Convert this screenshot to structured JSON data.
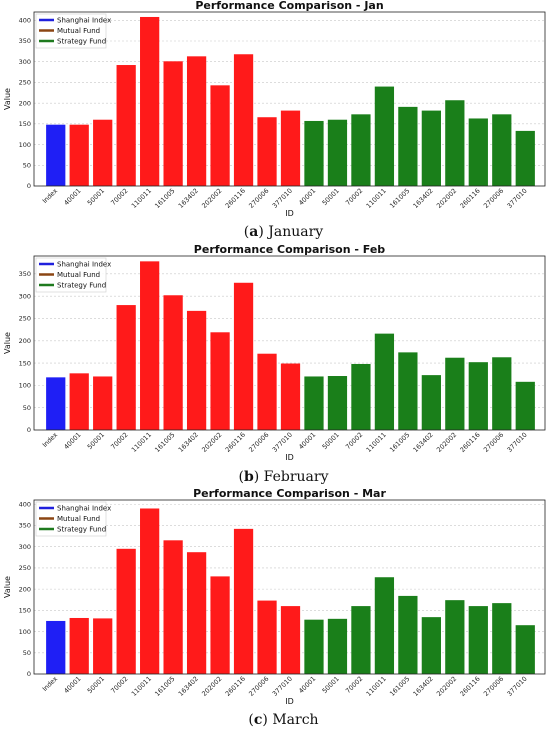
{
  "chart_data": [
    {
      "type": "bar",
      "title": "Performance Comparison - Jan",
      "caption_letter": "a",
      "caption_text": "January",
      "xlabel": "ID",
      "ylabel": "Value",
      "ylim": [
        0,
        420
      ],
      "yticks": [
        0,
        50,
        100,
        150,
        200,
        250,
        300,
        350,
        400
      ],
      "grid": "horizontal dashed",
      "legend_position": "top-left",
      "categories": [
        "Index",
        "40001",
        "50001",
        "70002",
        "110011",
        "161005",
        "163402",
        "202002",
        "260116",
        "270006",
        "377010",
        "40001",
        "50001",
        "70002",
        "110011",
        "161005",
        "163402",
        "202002",
        "260116",
        "270006",
        "377010"
      ],
      "values": [
        148,
        148,
        160,
        292,
        408,
        301,
        313,
        243,
        318,
        166,
        182,
        157,
        160,
        173,
        240,
        191,
        182,
        207,
        163,
        173,
        133
      ],
      "groups": [
        "index",
        "mutual",
        "mutual",
        "mutual",
        "mutual",
        "mutual",
        "mutual",
        "mutual",
        "mutual",
        "mutual",
        "mutual",
        "strategy",
        "strategy",
        "strategy",
        "strategy",
        "strategy",
        "strategy",
        "strategy",
        "strategy",
        "strategy",
        "strategy"
      ],
      "legend": [
        {
          "label": "Shanghai Index",
          "color": "#2020dd"
        },
        {
          "label": "Mutual Fund",
          "color": "#8b4513"
        },
        {
          "label": "Strategy Fund",
          "color": "#1e7a1e"
        }
      ]
    },
    {
      "type": "bar",
      "title": "Performance Comparison - Feb",
      "caption_letter": "b",
      "caption_text": "February",
      "xlabel": "ID",
      "ylabel": "Value",
      "ylim": [
        0,
        390
      ],
      "yticks": [
        0,
        50,
        100,
        150,
        200,
        250,
        300,
        350
      ],
      "grid": "horizontal dashed",
      "legend_position": "top-left",
      "categories": [
        "Index",
        "40001",
        "50001",
        "70002",
        "110011",
        "161005",
        "163402",
        "202002",
        "260116",
        "270006",
        "377010",
        "40001",
        "50001",
        "70002",
        "110011",
        "161005",
        "163402",
        "202002",
        "260116",
        "270006",
        "377010"
      ],
      "values": [
        118,
        127,
        120,
        280,
        378,
        302,
        267,
        219,
        330,
        171,
        149,
        120,
        121,
        148,
        216,
        174,
        123,
        162,
        152,
        163,
        108
      ],
      "groups": [
        "index",
        "mutual",
        "mutual",
        "mutual",
        "mutual",
        "mutual",
        "mutual",
        "mutual",
        "mutual",
        "mutual",
        "mutual",
        "strategy",
        "strategy",
        "strategy",
        "strategy",
        "strategy",
        "strategy",
        "strategy",
        "strategy",
        "strategy",
        "strategy"
      ],
      "legend": [
        {
          "label": "Shanghai Index",
          "color": "#2020dd"
        },
        {
          "label": "Mutual Fund",
          "color": "#8b4513"
        },
        {
          "label": "Strategy Fund",
          "color": "#1e7a1e"
        }
      ]
    },
    {
      "type": "bar",
      "title": "Performance Comparison - Mar",
      "caption_letter": "c",
      "caption_text": "March",
      "xlabel": "ID",
      "ylabel": "Value",
      "ylim": [
        0,
        410
      ],
      "yticks": [
        0,
        50,
        100,
        150,
        200,
        250,
        300,
        350,
        400
      ],
      "grid": "horizontal dashed",
      "legend_position": "top-left",
      "categories": [
        "Index",
        "40001",
        "50001",
        "70002",
        "110011",
        "161005",
        "163402",
        "202002",
        "260116",
        "270006",
        "377010",
        "40001",
        "50001",
        "70002",
        "110011",
        "161005",
        "163402",
        "202002",
        "260116",
        "270006",
        "377010"
      ],
      "values": [
        125,
        132,
        131,
        295,
        390,
        315,
        287,
        230,
        342,
        173,
        160,
        128,
        130,
        160,
        228,
        184,
        134,
        174,
        160,
        167,
        115
      ],
      "groups": [
        "index",
        "mutual",
        "mutual",
        "mutual",
        "mutual",
        "mutual",
        "mutual",
        "mutual",
        "mutual",
        "mutual",
        "mutual",
        "strategy",
        "strategy",
        "strategy",
        "strategy",
        "strategy",
        "strategy",
        "strategy",
        "strategy",
        "strategy",
        "strategy"
      ],
      "legend": [
        {
          "label": "Shanghai Index",
          "color": "#2020dd"
        },
        {
          "label": "Mutual Fund",
          "color": "#8b4513"
        },
        {
          "label": "Strategy Fund",
          "color": "#1e7a1e"
        }
      ]
    }
  ],
  "colors": {
    "index_bar": "#1f1ff5",
    "mutual_bar": "#ff1a1a",
    "strategy_bar": "#1a7f1a",
    "grid": "#c8c8c8"
  }
}
